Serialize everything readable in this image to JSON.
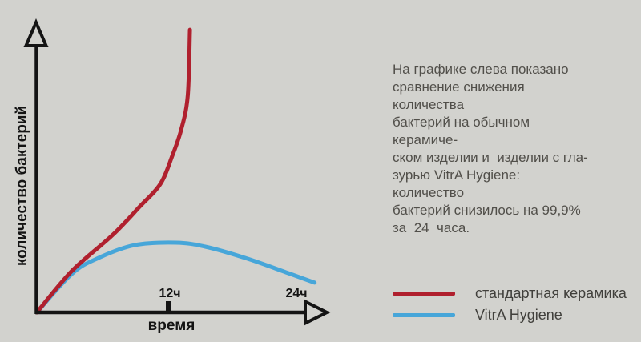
{
  "background_color": "#d2d2ce",
  "chart_data": {
    "type": "line",
    "title": "",
    "xlabel": "время",
    "ylabel": "количество бактерий",
    "x_unit_hours": true,
    "x_tick_labels": [
      "12ч",
      "24ч"
    ],
    "x_ticks_hours": [
      12,
      24
    ],
    "x_range_hours": [
      0,
      25.5
    ],
    "y_range_relative": [
      0,
      100
    ],
    "grid": false,
    "axis_color": "#141414",
    "legend_position": "bottom-right",
    "series": [
      {
        "name": "стандартная керамика",
        "color": "#b0202e",
        "points_hours_vs_relative_count": [
          [
            0,
            0
          ],
          [
            3.2,
            14.5
          ],
          [
            6.9,
            27
          ],
          [
            9.4,
            37
          ],
          [
            11.3,
            45
          ],
          [
            12.4,
            55
          ],
          [
            13.2,
            64
          ],
          [
            13.8,
            76
          ],
          [
            14,
            99
          ]
        ]
      },
      {
        "name": "VitrA Hygiene",
        "color": "#47a6d9",
        "points_hours_vs_relative_count": [
          [
            0,
            0
          ],
          [
            3.2,
            13.5
          ],
          [
            5.6,
            19
          ],
          [
            8.9,
            23.5
          ],
          [
            12.7,
            24.4
          ],
          [
            15.4,
            23
          ],
          [
            19.1,
            19
          ],
          [
            22.8,
            14
          ],
          [
            25.4,
            10.4
          ]
        ]
      }
    ]
  },
  "annotation": {
    "text": "На графике слева показано\nсравнение снижения количества\nбактерий на обычном керамиче-\nском изделии и  изделии с гла-\nзурью VitrA Hygiene: количество\nбактерий снизилось на 99,9%\nза  24  часа."
  }
}
